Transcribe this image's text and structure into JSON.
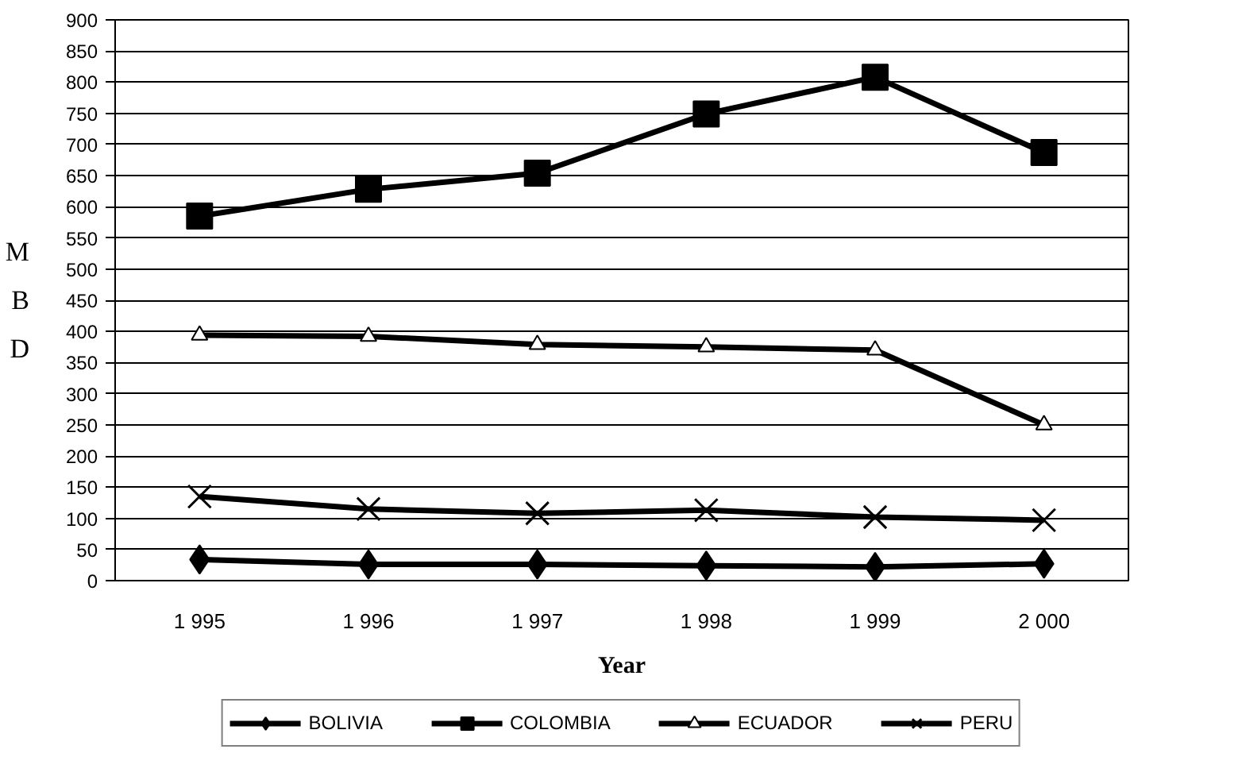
{
  "chart_data": {
    "type": "line",
    "xlabel": "Year",
    "ylabel": "MBD",
    "categories": [
      "1 995",
      "1 996",
      "1 997",
      "1 998",
      "1 999",
      "2 000"
    ],
    "series": [
      {
        "name": "BOLIVIA",
        "color": "#000000",
        "marker": "diamond",
        "values": [
          34,
          26,
          26,
          24,
          22,
          27
        ]
      },
      {
        "name": "COLOMBIA",
        "color": "#000000",
        "marker": "square",
        "values": [
          585,
          628,
          654,
          749,
          808,
          687
        ]
      },
      {
        "name": "ECUADOR",
        "color": "#000000",
        "marker": "triangle",
        "values": [
          394,
          392,
          379,
          375,
          370,
          250
        ]
      },
      {
        "name": "PERU",
        "color": "#000000",
        "marker": "cross",
        "values": [
          135,
          115,
          108,
          113,
          102,
          97
        ]
      }
    ],
    "ylim": [
      0,
      900
    ],
    "yticks": [
      0,
      50,
      100,
      150,
      200,
      250,
      300,
      350,
      400,
      450,
      500,
      550,
      600,
      650,
      700,
      750,
      800,
      850,
      900
    ],
    "grid": "y",
    "legend": "bottom",
    "line_style": "solid"
  }
}
